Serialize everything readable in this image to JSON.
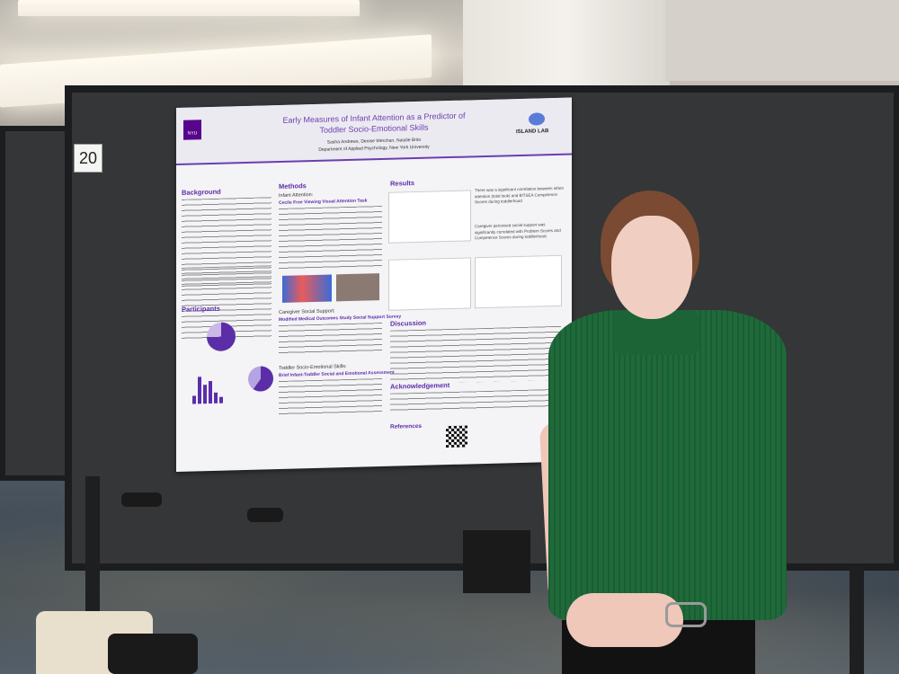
{
  "poster": {
    "title_line1": "Early Measures of Infant Attention as a Predictor of",
    "title_line2": "Toddler Socio-Emotional Skills",
    "authors": "Sasha Andrews, Denise Werchan, Natalie Brito",
    "department": "Department of Applied Psychology, New York University",
    "logo_left": "NYU",
    "logo_right": "ISLAND LAB",
    "sections": {
      "background": "Background",
      "methods": "Methods",
      "results": "Results",
      "participants": "Participants",
      "discussion": "Discussion",
      "acknowledgement": "Acknowledgement",
      "references": "References"
    },
    "subheads": {
      "infant_attention": "Infant Attention:",
      "cecile": "Cecile Free Viewing Visual Attention Task",
      "caregiver": "Caregiver Social Support:",
      "mmoss": "Modified Medical Outcomes Study Social Support Survey",
      "toddler": "Toddler Socio-Emotional Skills:",
      "bitsea": "Brief Infant-Toddler Social and Emotional Assessment"
    },
    "results_text": "There was a significant correlation between infant attention (total look) and BITSEA Competence Scores during toddlerhood",
    "caregiver_text": "Caregiver perceived social support was significantly correlated with Problem Scores and Competence Scores during toddlerhood."
  },
  "board_number": "20",
  "colors": {
    "poster_accent": "#6a3fb0",
    "sweater": "#1f6a3a",
    "board": "#343638"
  }
}
